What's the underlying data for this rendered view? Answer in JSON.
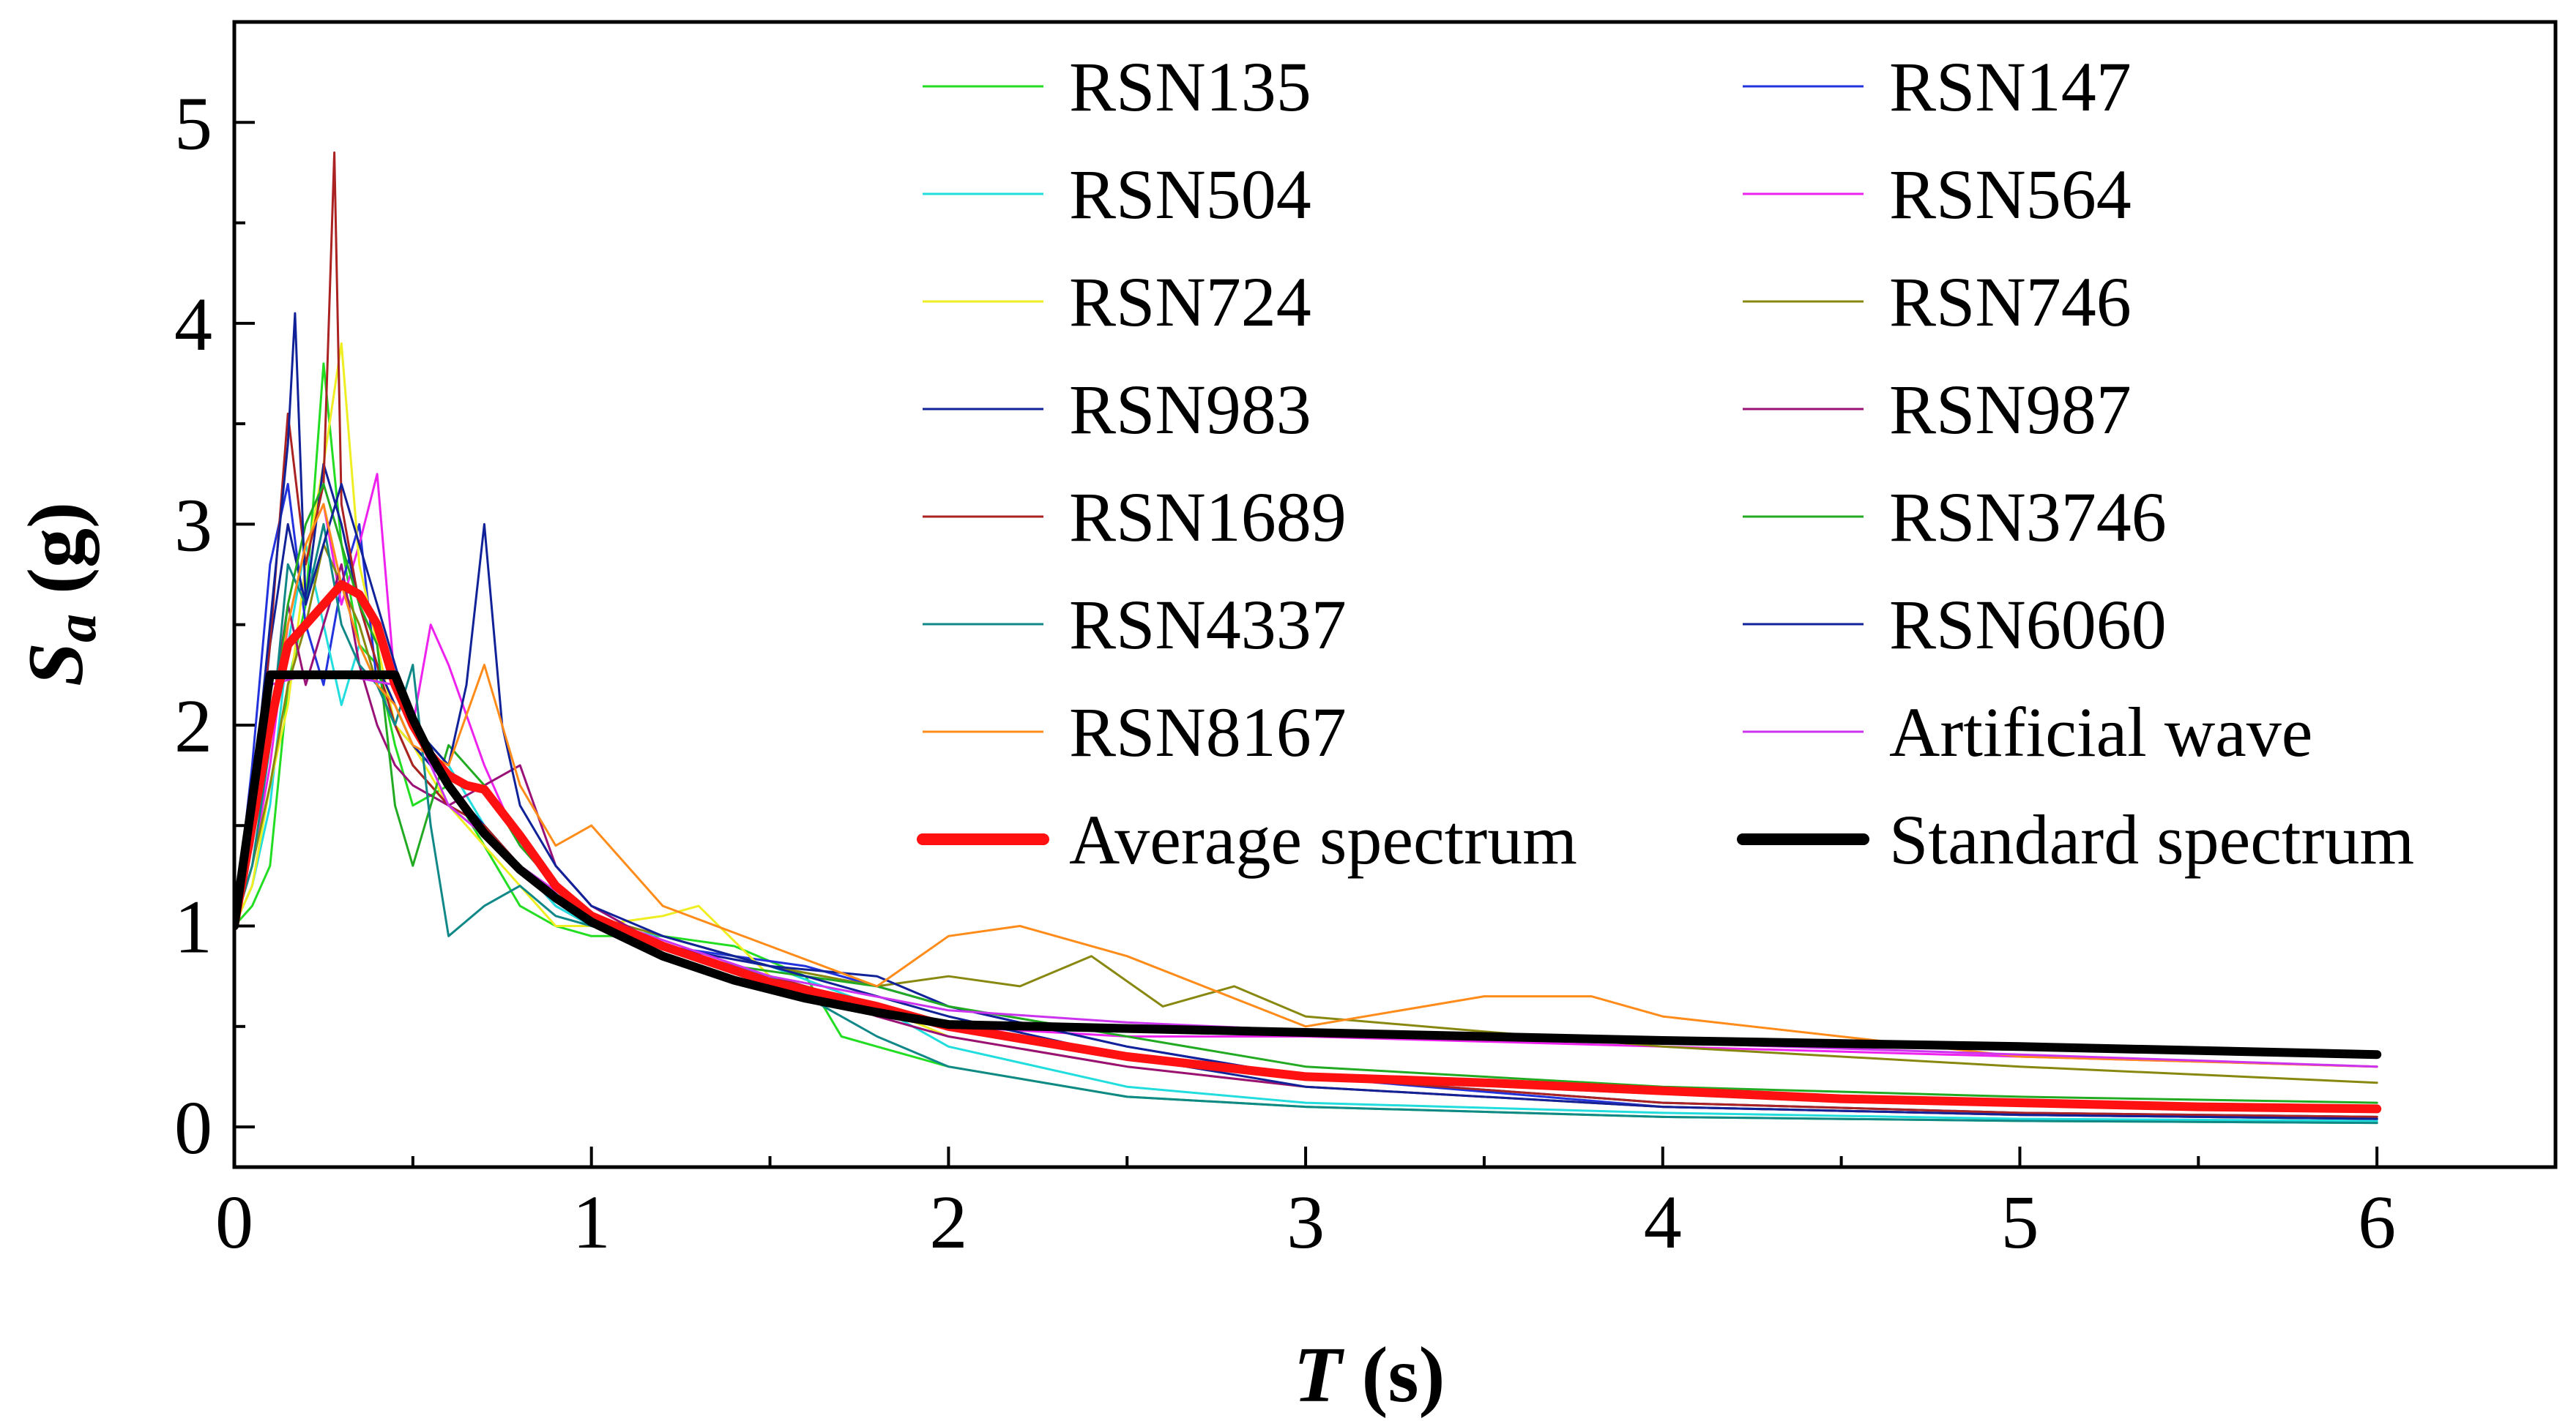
{
  "chart_data": {
    "type": "line",
    "xlabel_main": "T",
    "xlabel_unit": " (s)",
    "ylabel_main": "S",
    "ylabel_sub": "a",
    "ylabel_unit": " (g)",
    "xlim": [
      0,
      6.5
    ],
    "ylim": [
      -0.2,
      5.5
    ],
    "xticks": [
      0,
      1,
      2,
      3,
      4,
      5,
      6
    ],
    "yticks": [
      0,
      1,
      2,
      3,
      4,
      5
    ],
    "x_minor_step": 0.5,
    "y_minor_step": 0.5,
    "grid": false,
    "legend_position": "top-right",
    "series": [
      {
        "name": "RSN135",
        "color": "#22dd22",
        "width": 3,
        "x": [
          0,
          0.05,
          0.1,
          0.15,
          0.2,
          0.25,
          0.3,
          0.35,
          0.4,
          0.45,
          0.5,
          0.6,
          0.7,
          0.8,
          0.9,
          1.0,
          1.2,
          1.4,
          1.6,
          1.7,
          1.8,
          2.0,
          2.5,
          3.0,
          4.0,
          5.0,
          6.0
        ],
        "y": [
          1.0,
          1.1,
          1.3,
          2.2,
          2.6,
          3.8,
          2.9,
          2.4,
          2.3,
          1.9,
          1.6,
          1.7,
          1.4,
          1.1,
          1.0,
          0.95,
          0.95,
          0.9,
          0.75,
          0.45,
          0.4,
          0.3,
          0.15,
          0.1,
          0.05,
          0.03,
          0.02
        ]
      },
      {
        "name": "RSN147",
        "color": "#2233dd",
        "width": 3,
        "x": [
          0,
          0.05,
          0.1,
          0.15,
          0.2,
          0.25,
          0.3,
          0.35,
          0.4,
          0.45,
          0.5,
          0.6,
          0.7,
          0.8,
          0.9,
          1.0,
          1.2,
          1.4,
          1.6,
          1.8,
          2.0,
          2.5,
          3.0,
          4.0,
          5.0,
          6.0
        ],
        "y": [
          1.0,
          1.8,
          2.8,
          3.2,
          2.5,
          2.2,
          2.7,
          3.0,
          2.2,
          2.0,
          1.9,
          1.7,
          1.5,
          1.3,
          1.1,
          1.0,
          0.9,
          0.85,
          0.8,
          0.7,
          0.6,
          0.4,
          0.25,
          0.1,
          0.06,
          0.04
        ]
      },
      {
        "name": "RSN504",
        "color": "#22dddd",
        "width": 3,
        "x": [
          0,
          0.05,
          0.1,
          0.15,
          0.2,
          0.25,
          0.3,
          0.35,
          0.4,
          0.45,
          0.5,
          0.6,
          0.7,
          0.8,
          0.9,
          1.0,
          1.2,
          1.5,
          1.8,
          2.0,
          2.5,
          3.0,
          4.0,
          5.0,
          6.0
        ],
        "y": [
          1.0,
          1.2,
          1.6,
          2.4,
          2.9,
          2.5,
          2.1,
          2.4,
          2.2,
          2.3,
          2.0,
          1.8,
          1.5,
          1.3,
          1.1,
          1.0,
          0.95,
          0.8,
          0.6,
          0.4,
          0.2,
          0.12,
          0.07,
          0.04,
          0.03
        ]
      },
      {
        "name": "RSN564",
        "color": "#ee22ee",
        "width": 3,
        "x": [
          0,
          0.05,
          0.1,
          0.15,
          0.2,
          0.25,
          0.3,
          0.35,
          0.4,
          0.45,
          0.5,
          0.55,
          0.6,
          0.7,
          0.8,
          0.9,
          1.0,
          1.2,
          1.5,
          1.8,
          2.0,
          2.5,
          3.0,
          4.0,
          5.0,
          6.0
        ],
        "y": [
          1.0,
          1.3,
          1.8,
          2.5,
          2.9,
          3.1,
          2.6,
          2.9,
          3.25,
          2.2,
          2.0,
          2.5,
          2.3,
          1.8,
          1.4,
          1.2,
          1.05,
          0.9,
          0.7,
          0.6,
          0.5,
          0.45,
          0.45,
          0.4,
          0.35,
          0.3
        ]
      },
      {
        "name": "RSN724",
        "color": "#eeee22",
        "width": 3,
        "x": [
          0,
          0.05,
          0.1,
          0.15,
          0.2,
          0.25,
          0.3,
          0.35,
          0.4,
          0.45,
          0.5,
          0.6,
          0.7,
          0.8,
          0.9,
          1.0,
          1.2,
          1.3,
          1.5,
          1.8,
          2.0,
          2.5,
          3.0,
          4.0,
          5.0,
          6.0
        ],
        "y": [
          1.0,
          1.2,
          1.7,
          2.1,
          2.8,
          3.3,
          3.9,
          2.8,
          2.4,
          2.0,
          1.9,
          1.6,
          1.4,
          1.2,
          1.0,
          1.0,
          1.05,
          1.1,
          0.75,
          0.6,
          0.45,
          0.3,
          0.2,
          0.1,
          0.06,
          0.04
        ]
      },
      {
        "name": "RSN746",
        "color": "#888811",
        "width": 3,
        "x": [
          0,
          0.05,
          0.1,
          0.15,
          0.2,
          0.25,
          0.3,
          0.35,
          0.4,
          0.45,
          0.5,
          0.6,
          0.7,
          0.8,
          0.9,
          1.0,
          1.2,
          1.5,
          1.8,
          2.0,
          2.2,
          2.4,
          2.6,
          2.8,
          3.0,
          4.0,
          5.0,
          6.0
        ],
        "y": [
          1.0,
          1.3,
          1.7,
          2.2,
          2.5,
          2.9,
          2.7,
          2.5,
          2.2,
          2.0,
          1.8,
          1.6,
          1.5,
          1.3,
          1.15,
          1.05,
          0.95,
          0.8,
          0.7,
          0.75,
          0.7,
          0.85,
          0.6,
          0.7,
          0.55,
          0.4,
          0.3,
          0.22
        ]
      },
      {
        "name": "RSN983",
        "color": "#112299",
        "width": 3,
        "x": [
          0,
          0.05,
          0.1,
          0.15,
          0.2,
          0.25,
          0.3,
          0.35,
          0.4,
          0.45,
          0.5,
          0.6,
          0.7,
          0.8,
          0.9,
          1.0,
          1.2,
          1.5,
          1.8,
          2.0,
          2.5,
          3.0,
          4.0,
          5.0,
          6.0
        ],
        "y": [
          1.0,
          1.5,
          2.4,
          3.0,
          2.6,
          3.3,
          3.0,
          2.6,
          2.3,
          2.1,
          1.9,
          1.7,
          1.5,
          1.3,
          1.15,
          1.05,
          0.9,
          0.8,
          0.75,
          0.6,
          0.4,
          0.25,
          0.12,
          0.07,
          0.05
        ]
      },
      {
        "name": "RSN987",
        "color": "#991177",
        "width": 3,
        "x": [
          0,
          0.05,
          0.1,
          0.15,
          0.2,
          0.25,
          0.3,
          0.35,
          0.4,
          0.45,
          0.5,
          0.6,
          0.7,
          0.8,
          0.9,
          1.0,
          1.2,
          1.5,
          1.8,
          2.0,
          2.5,
          3.0,
          4.0,
          5.0,
          6.0
        ],
        "y": [
          1.0,
          1.4,
          2.0,
          2.6,
          2.2,
          2.5,
          2.8,
          2.3,
          2.0,
          1.8,
          1.7,
          1.6,
          1.7,
          1.8,
          1.3,
          1.1,
          0.9,
          0.75,
          0.55,
          0.45,
          0.3,
          0.2,
          0.1,
          0.06,
          0.04
        ]
      },
      {
        "name": "RSN1689",
        "color": "#aa2222",
        "width": 3,
        "x": [
          0,
          0.05,
          0.1,
          0.15,
          0.2,
          0.25,
          0.28,
          0.3,
          0.35,
          0.4,
          0.45,
          0.5,
          0.6,
          0.7,
          0.8,
          0.9,
          1.0,
          1.2,
          1.5,
          1.8,
          2.0,
          2.5,
          3.0,
          4.0,
          5.0,
          6.0
        ],
        "y": [
          1.0,
          1.6,
          2.4,
          3.55,
          2.8,
          3.2,
          4.85,
          3.1,
          2.6,
          2.3,
          2.0,
          1.8,
          1.6,
          1.5,
          1.3,
          1.15,
          1.05,
          0.9,
          0.75,
          0.6,
          0.5,
          0.35,
          0.25,
          0.12,
          0.07,
          0.05
        ]
      },
      {
        "name": "RSN3746",
        "color": "#22aa22",
        "width": 3,
        "x": [
          0,
          0.05,
          0.1,
          0.15,
          0.2,
          0.25,
          0.3,
          0.35,
          0.4,
          0.45,
          0.5,
          0.55,
          0.6,
          0.7,
          0.8,
          0.9,
          1.0,
          1.2,
          1.4,
          1.6,
          1.8,
          2.0,
          2.5,
          3.0,
          4.0,
          5.0,
          6.0
        ],
        "y": [
          1.0,
          1.5,
          1.9,
          2.6,
          3.0,
          3.2,
          2.9,
          2.6,
          2.4,
          1.6,
          1.3,
          1.6,
          1.9,
          1.7,
          1.4,
          1.2,
          1.05,
          0.9,
          0.8,
          0.75,
          0.7,
          0.6,
          0.45,
          0.3,
          0.2,
          0.15,
          0.12
        ]
      },
      {
        "name": "RSN4337",
        "color": "#118888",
        "width": 3,
        "x": [
          0,
          0.05,
          0.1,
          0.15,
          0.2,
          0.25,
          0.3,
          0.35,
          0.4,
          0.45,
          0.5,
          0.55,
          0.6,
          0.7,
          0.8,
          0.9,
          1.0,
          1.2,
          1.5,
          1.8,
          2.0,
          2.5,
          3.0,
          4.0,
          5.0,
          6.0
        ],
        "y": [
          1.0,
          1.3,
          1.9,
          2.8,
          2.6,
          3.0,
          2.5,
          2.3,
          2.2,
          2.0,
          2.3,
          1.5,
          0.95,
          1.1,
          1.2,
          1.05,
          1.0,
          0.9,
          0.75,
          0.45,
          0.3,
          0.15,
          0.1,
          0.05,
          0.03,
          0.02
        ]
      },
      {
        "name": "RSN6060",
        "color": "#112299",
        "width": 3,
        "x": [
          0,
          0.05,
          0.1,
          0.15,
          0.17,
          0.2,
          0.25,
          0.3,
          0.35,
          0.4,
          0.45,
          0.5,
          0.6,
          0.65,
          0.7,
          0.75,
          0.8,
          0.9,
          1.0,
          1.2,
          1.5,
          1.8,
          2.0,
          2.5,
          3.0,
          4.0,
          5.0,
          6.0
        ],
        "y": [
          1.0,
          1.6,
          2.5,
          3.4,
          4.05,
          2.6,
          2.9,
          3.2,
          2.9,
          2.6,
          2.3,
          2.0,
          1.8,
          2.2,
          3.0,
          2.0,
          1.6,
          1.3,
          1.1,
          0.95,
          0.8,
          0.65,
          0.55,
          0.35,
          0.2,
          0.1,
          0.06,
          0.04
        ]
      },
      {
        "name": "RSN8167",
        "color": "#ff8c1a",
        "width": 3,
        "x": [
          0,
          0.05,
          0.1,
          0.15,
          0.2,
          0.25,
          0.3,
          0.35,
          0.4,
          0.45,
          0.5,
          0.6,
          0.7,
          0.75,
          0.8,
          0.9,
          1.0,
          1.2,
          1.5,
          1.8,
          2.0,
          2.2,
          2.5,
          3.0,
          3.5,
          3.8,
          4.0,
          5.0,
          6.0
        ],
        "y": [
          1.0,
          1.5,
          2.0,
          2.5,
          2.9,
          3.1,
          2.7,
          2.4,
          2.2,
          2.1,
          1.9,
          1.8,
          2.3,
          2.0,
          1.7,
          1.4,
          1.5,
          1.1,
          0.9,
          0.7,
          0.95,
          1.0,
          0.85,
          0.5,
          0.65,
          0.65,
          0.55,
          0.35,
          0.3
        ]
      },
      {
        "name": "Artificial wave",
        "color": "#cc33ee",
        "width": 3,
        "x": [
          0,
          0.05,
          0.1,
          0.2,
          0.3,
          0.45,
          0.6,
          0.8,
          1.0,
          1.5,
          2.0,
          2.5,
          3.0,
          3.5,
          4.0,
          5.0,
          6.0
        ],
        "y": [
          1.0,
          1.6,
          2.2,
          2.25,
          2.25,
          2.2,
          1.6,
          1.3,
          1.05,
          0.75,
          0.58,
          0.52,
          0.48,
          0.45,
          0.42,
          0.36,
          0.3
        ]
      },
      {
        "name": "Average spectrum",
        "color": "#ff1111",
        "width": 12,
        "x": [
          0,
          0.05,
          0.1,
          0.15,
          0.2,
          0.25,
          0.3,
          0.35,
          0.4,
          0.45,
          0.5,
          0.55,
          0.6,
          0.65,
          0.7,
          0.8,
          0.9,
          1.0,
          1.2,
          1.5,
          1.8,
          2.0,
          2.5,
          3.0,
          3.5,
          4.0,
          4.5,
          5.0,
          5.5,
          6.0
        ],
        "y": [
          1.0,
          1.5,
          2.0,
          2.4,
          2.5,
          2.6,
          2.7,
          2.65,
          2.5,
          2.2,
          2.0,
          1.85,
          1.75,
          1.7,
          1.68,
          1.45,
          1.2,
          1.05,
          0.9,
          0.72,
          0.6,
          0.5,
          0.35,
          0.25,
          0.22,
          0.18,
          0.14,
          0.12,
          0.1,
          0.09
        ]
      },
      {
        "name": "Standard spectrum",
        "color": "#000000",
        "width": 12,
        "x": [
          0,
          0.1,
          0.45,
          0.5,
          0.55,
          0.6,
          0.7,
          0.8,
          0.9,
          1.0,
          1.2,
          1.4,
          1.6,
          1.8,
          2.0,
          2.25,
          3.0,
          4.0,
          5.0,
          6.0
        ],
        "y": [
          1.0,
          2.25,
          2.25,
          2.03,
          1.85,
          1.7,
          1.46,
          1.28,
          1.14,
          1.02,
          0.85,
          0.73,
          0.64,
          0.57,
          0.51,
          0.5,
          0.47,
          0.43,
          0.4,
          0.36
        ]
      }
    ]
  }
}
